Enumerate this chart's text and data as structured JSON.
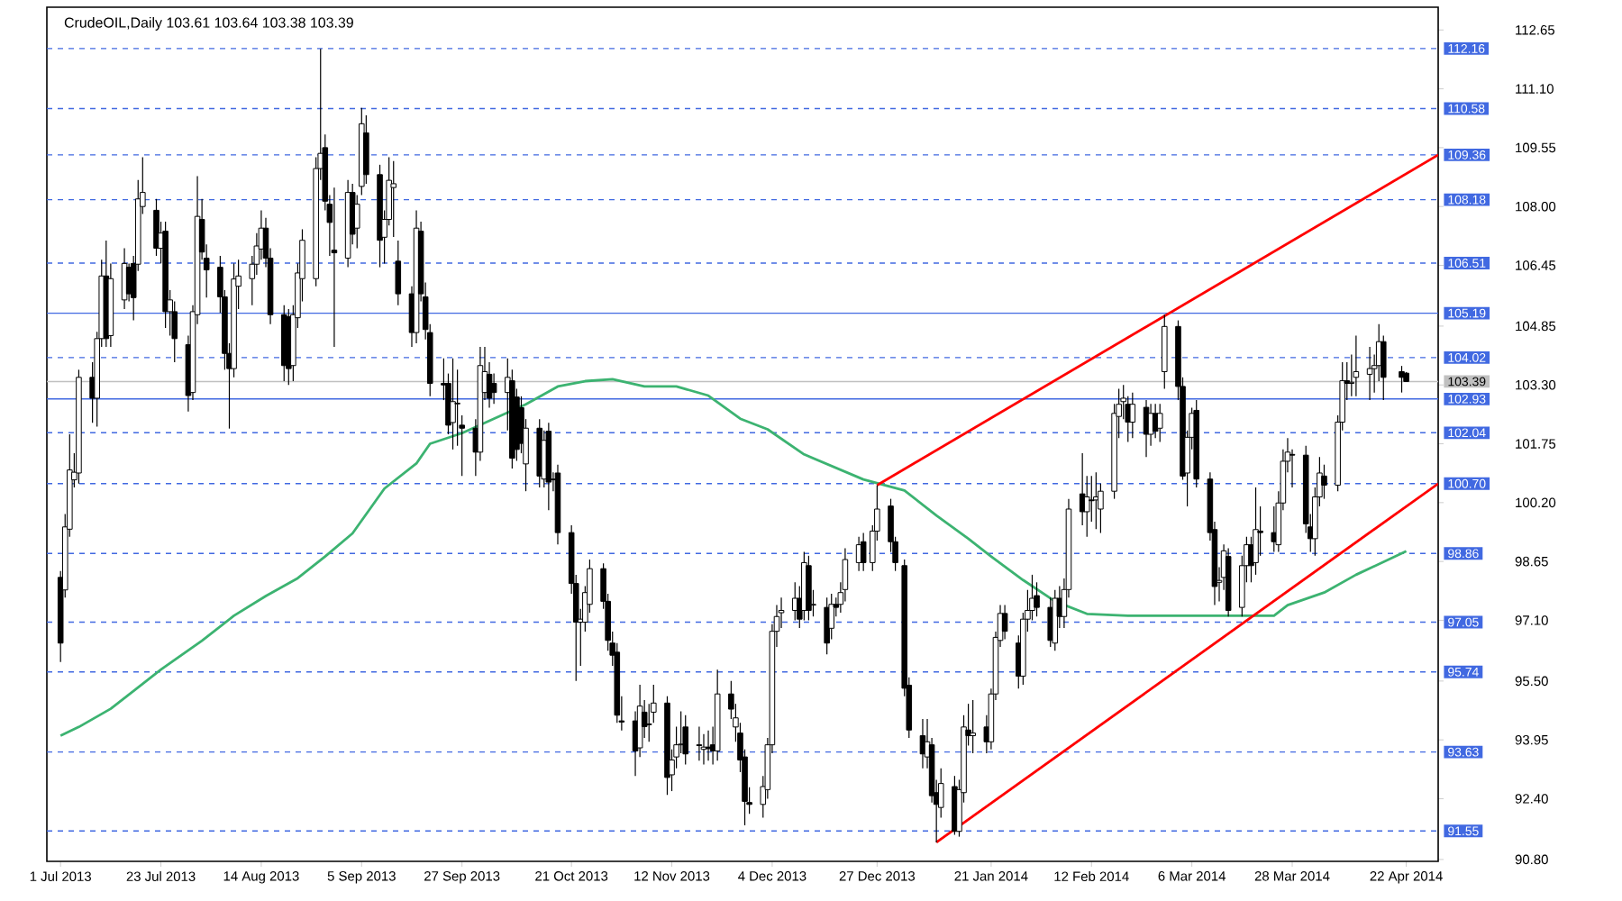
{
  "chart_data": {
    "type": "candlestick",
    "title": "CrudeOIL,Daily  103.61 103.64 103.38 103.39",
    "x": [
      "2013-07-01",
      "2013-07-02",
      "2013-07-03",
      "2013-07-04",
      "2013-07-05",
      "2013-07-08",
      "2013-07-09",
      "2013-07-10",
      "2013-07-11",
      "2013-07-12",
      "2013-07-15",
      "2013-07-16",
      "2013-07-17",
      "2013-07-18",
      "2013-07-19",
      "2013-07-22",
      "2013-07-23",
      "2013-07-24",
      "2013-07-25",
      "2013-07-26",
      "2013-07-29",
      "2013-07-30",
      "2013-07-31",
      "2013-08-01",
      "2013-08-02",
      "2013-08-05",
      "2013-08-06",
      "2013-08-07",
      "2013-08-08",
      "2013-08-09",
      "2013-08-12",
      "2013-08-13",
      "2013-08-14",
      "2013-08-15",
      "2013-08-16",
      "2013-08-19",
      "2013-08-20",
      "2013-08-21",
      "2013-08-22",
      "2013-08-23",
      "2013-08-26",
      "2013-08-27",
      "2013-08-28",
      "2013-08-29",
      "2013-08-30",
      "2013-09-02",
      "2013-09-03",
      "2013-09-04",
      "2013-09-05",
      "2013-09-06",
      "2013-09-09",
      "2013-09-10",
      "2013-09-11",
      "2013-09-12",
      "2013-09-13",
      "2013-09-16",
      "2013-09-17",
      "2013-09-18",
      "2013-09-19",
      "2013-09-20",
      "2013-09-23",
      "2013-09-24",
      "2013-09-25",
      "2013-09-26",
      "2013-09-27",
      "2013-09-30",
      "2013-10-01",
      "2013-10-02",
      "2013-10-03",
      "2013-10-04",
      "2013-10-07",
      "2013-10-08",
      "2013-10-09",
      "2013-10-10",
      "2013-10-11",
      "2013-10-14",
      "2013-10-15",
      "2013-10-16",
      "2013-10-17",
      "2013-10-18",
      "2013-10-21",
      "2013-10-22",
      "2013-10-23",
      "2013-10-24",
      "2013-10-25",
      "2013-10-28",
      "2013-10-29",
      "2013-10-30",
      "2013-10-31",
      "2013-11-01",
      "2013-11-04",
      "2013-11-05",
      "2013-11-06",
      "2013-11-07",
      "2013-11-08",
      "2013-11-11",
      "2013-11-12",
      "2013-11-13",
      "2013-11-14",
      "2013-11-15",
      "2013-11-18",
      "2013-11-19",
      "2013-11-20",
      "2013-11-21",
      "2013-11-22",
      "2013-11-25",
      "2013-11-26",
      "2013-11-27",
      "2013-11-28",
      "2013-11-29",
      "2013-12-02",
      "2013-12-03",
      "2013-12-04",
      "2013-12-05",
      "2013-12-06",
      "2013-12-09",
      "2013-12-10",
      "2013-12-11",
      "2013-12-12",
      "2013-12-13",
      "2013-12-16",
      "2013-12-17",
      "2013-12-18",
      "2013-12-19",
      "2013-12-20",
      "2013-12-23",
      "2013-12-24",
      "2013-12-26",
      "2013-12-27",
      "2013-12-30",
      "2013-12-31",
      "2014-01-02",
      "2014-01-03",
      "2014-01-06",
      "2014-01-07",
      "2014-01-08",
      "2014-01-09",
      "2014-01-10",
      "2014-01-13",
      "2014-01-14",
      "2014-01-15",
      "2014-01-16",
      "2014-01-17",
      "2014-01-20",
      "2014-01-21",
      "2014-01-22",
      "2014-01-23",
      "2014-01-24",
      "2014-01-27",
      "2014-01-28",
      "2014-01-29",
      "2014-01-30",
      "2014-01-31",
      "2014-02-03",
      "2014-02-04",
      "2014-02-05",
      "2014-02-06",
      "2014-02-07",
      "2014-02-10",
      "2014-02-11",
      "2014-02-12",
      "2014-02-13",
      "2014-02-14",
      "2014-02-17",
      "2014-02-18",
      "2014-02-19",
      "2014-02-20",
      "2014-02-21",
      "2014-02-24",
      "2014-02-25",
      "2014-02-26",
      "2014-02-27",
      "2014-02-28",
      "2014-03-03",
      "2014-03-04",
      "2014-03-05",
      "2014-03-06",
      "2014-03-07",
      "2014-03-10",
      "2014-03-11",
      "2014-03-12",
      "2014-03-13",
      "2014-03-14",
      "2014-03-17",
      "2014-03-18",
      "2014-03-19",
      "2014-03-20",
      "2014-03-21",
      "2014-03-24",
      "2014-03-25",
      "2014-03-26",
      "2014-03-27",
      "2014-03-28",
      "2014-03-31",
      "2014-04-01",
      "2014-04-02",
      "2014-04-03",
      "2014-04-04",
      "2014-04-07",
      "2014-04-08",
      "2014-04-09",
      "2014-04-10",
      "2014-04-11",
      "2014-04-14",
      "2014-04-15",
      "2014-04-16",
      "2014-04-17",
      "2014-04-21",
      "2014-04-22"
    ],
    "ohlc": [
      [
        98.23,
        98.4,
        96.0,
        96.5
      ],
      [
        97.9,
        99.9,
        97.7,
        99.56
      ],
      [
        99.5,
        102.0,
        99.3,
        101.06
      ],
      [
        100.8,
        101.5,
        100.6,
        101.0
      ],
      [
        100.98,
        103.7,
        100.7,
        103.5
      ],
      [
        103.5,
        103.9,
        102.3,
        102.95
      ],
      [
        102.95,
        104.7,
        102.2,
        104.52
      ],
      [
        104.52,
        106.6,
        104.3,
        106.17
      ],
      [
        106.17,
        107.1,
        104.3,
        104.52
      ],
      [
        104.6,
        106.5,
        104.3,
        106.1
      ],
      [
        105.54,
        106.9,
        105.3,
        106.5
      ],
      [
        106.4,
        106.5,
        105.5,
        105.7
      ],
      [
        106.5,
        106.7,
        105.0,
        105.6
      ],
      [
        106.48,
        108.7,
        106.3,
        108.2
      ],
      [
        108.0,
        109.3,
        107.8,
        108.37
      ],
      [
        107.9,
        108.2,
        106.7,
        106.9
      ],
      [
        106.9,
        107.6,
        106.5,
        107.3
      ],
      [
        107.35,
        107.6,
        104.8,
        105.23
      ],
      [
        105.23,
        105.8,
        104.6,
        105.54
      ],
      [
        105.23,
        105.5,
        103.9,
        104.52
      ],
      [
        104.36,
        104.6,
        102.6,
        103.02
      ],
      [
        103.1,
        105.4,
        102.9,
        105.23
      ],
      [
        105.15,
        108.8,
        104.9,
        107.74
      ],
      [
        107.66,
        108.2,
        106.6,
        106.8
      ],
      [
        106.64,
        107.0,
        105.6,
        106.33
      ],
      [
        106.4,
        106.7,
        105.2,
        105.62
      ],
      [
        105.62,
        105.8,
        103.7,
        104.13
      ],
      [
        104.13,
        104.4,
        102.15,
        103.73
      ],
      [
        103.73,
        106.5,
        103.5,
        106.09
      ],
      [
        105.9,
        106.6,
        105.3,
        106.17
      ],
      [
        106.1,
        106.7,
        105.4,
        106.48
      ],
      [
        106.48,
        107.3,
        106.2,
        106.96
      ],
      [
        106.88,
        107.9,
        106.6,
        107.43
      ],
      [
        107.43,
        107.7,
        106.4,
        106.64
      ],
      [
        106.64,
        106.9,
        104.9,
        105.15
      ],
      [
        105.15,
        105.4,
        103.4,
        103.81
      ],
      [
        105.1,
        105.3,
        103.3,
        103.73
      ],
      [
        103.81,
        105.4,
        103.4,
        105.15
      ],
      [
        105.07,
        106.5,
        104.8,
        106.25
      ],
      [
        106.1,
        107.4,
        105.5,
        107.11
      ],
      [
        106.1,
        109.3,
        105.9,
        109.0
      ],
      [
        109.0,
        112.15,
        108.7,
        109.4
      ],
      [
        109.55,
        109.9,
        107.9,
        108.14
      ],
      [
        108.06,
        108.3,
        106.7,
        107.58
      ],
      [
        106.85,
        108.5,
        104.3,
        106.78
      ],
      [
        106.64,
        108.7,
        106.4,
        108.37
      ],
      [
        108.37,
        108.6,
        107.0,
        107.27
      ],
      [
        107.43,
        108.3,
        106.9,
        108.06
      ],
      [
        108.53,
        110.6,
        108.3,
        110.18
      ],
      [
        109.94,
        110.4,
        108.6,
        108.84
      ],
      [
        108.84,
        109.1,
        106.4,
        107.11
      ],
      [
        107.19,
        107.9,
        106.5,
        107.66
      ],
      [
        107.66,
        109.3,
        107.5,
        108.69
      ],
      [
        108.5,
        109.2,
        107.2,
        108.6
      ],
      [
        106.56,
        107.1,
        105.4,
        105.7
      ],
      [
        105.7,
        105.9,
        104.3,
        104.68
      ],
      [
        104.68,
        107.9,
        104.4,
        107.43
      ],
      [
        107.35,
        107.6,
        105.5,
        105.7
      ],
      [
        105.62,
        106.0,
        104.5,
        104.76
      ],
      [
        104.68,
        104.9,
        103.0,
        103.34
      ],
      [
        103.34,
        104.0,
        102.9,
        103.3
      ],
      [
        103.34,
        103.6,
        102.0,
        102.24
      ],
      [
        102.31,
        104.0,
        101.6,
        102.86
      ],
      [
        102.8,
        103.7,
        101.7,
        102.82
      ],
      [
        102.24,
        102.5,
        100.9,
        102.16
      ],
      [
        102.16,
        102.4,
        100.9,
        101.53
      ],
      [
        101.53,
        104.3,
        101.3,
        103.81
      ],
      [
        103.1,
        104.3,
        102.9,
        103.65
      ],
      [
        103.58,
        103.9,
        102.7,
        102.95
      ],
      [
        103.34,
        103.6,
        102.8,
        103.1
      ],
      [
        103.1,
        104.0,
        102.1,
        103.5
      ],
      [
        103.41,
        103.7,
        101.1,
        101.37
      ],
      [
        102.98,
        103.2,
        101.3,
        101.6
      ],
      [
        102.7,
        103.0,
        101.5,
        101.76
      ],
      [
        101.22,
        102.4,
        100.5,
        102.16
      ],
      [
        102.16,
        102.4,
        100.6,
        100.9
      ],
      [
        100.82,
        102.1,
        100.6,
        101.84
      ],
      [
        102.08,
        102.3,
        100.0,
        100.74
      ],
      [
        100.82,
        101.0,
        100.5,
        100.8
      ],
      [
        100.98,
        101.2,
        99.1,
        99.41
      ],
      [
        99.41,
        99.6,
        97.8,
        98.07
      ],
      [
        98.07,
        98.3,
        95.5,
        97.05
      ],
      [
        97.05,
        97.4,
        95.9,
        97.13
      ],
      [
        97.05,
        98.0,
        96.8,
        97.83
      ],
      [
        97.52,
        98.7,
        97.3,
        98.46
      ],
      [
        98.46,
        98.6,
        97.4,
        97.6
      ],
      [
        97.6,
        97.8,
        96.3,
        96.57
      ],
      [
        96.5,
        96.8,
        95.9,
        96.18
      ],
      [
        96.26,
        96.5,
        94.4,
        94.6
      ],
      [
        94.45,
        95.1,
        94.2,
        94.42
      ],
      [
        94.45,
        94.7,
        93.0,
        93.66
      ],
      [
        93.74,
        95.4,
        93.5,
        94.84
      ],
      [
        94.68,
        95.0,
        94.0,
        94.3
      ],
      [
        94.37,
        94.9,
        93.9,
        94.35
      ],
      [
        94.68,
        95.4,
        94.4,
        94.92
      ],
      [
        94.92,
        95.1,
        92.5,
        92.96
      ],
      [
        93.03,
        93.7,
        92.6,
        93.42
      ],
      [
        93.5,
        94.3,
        93.2,
        93.82
      ],
      [
        93.82,
        94.7,
        93.6,
        93.84
      ],
      [
        94.29,
        94.6,
        93.3,
        93.58
      ],
      [
        93.82,
        94.3,
        93.4,
        93.8
      ],
      [
        93.7,
        94.1,
        93.3,
        93.76
      ],
      [
        93.76,
        94.2,
        93.4,
        93.72
      ],
      [
        93.82,
        94.3,
        93.3,
        93.66
      ],
      [
        93.66,
        95.8,
        93.4,
        95.16
      ],
      [
        95.16,
        95.5,
        94.5,
        94.76
      ],
      [
        94.29,
        94.9,
        93.9,
        94.53
      ],
      [
        94.13,
        94.4,
        93.1,
        93.42
      ],
      [
        93.5,
        93.7,
        91.7,
        92.33
      ],
      [
        92.3,
        92.7,
        92.0,
        92.25
      ],
      [
        92.25,
        93.0,
        91.9,
        92.72
      ],
      [
        92.64,
        94.0,
        92.4,
        93.82
      ],
      [
        93.82,
        97.0,
        93.6,
        96.81
      ],
      [
        96.81,
        97.5,
        96.4,
        97.2
      ],
      [
        97.3,
        97.7,
        96.9,
        97.36
      ],
      [
        97.36,
        98.1,
        97.1,
        97.68
      ],
      [
        97.68,
        98.0,
        96.9,
        97.13
      ],
      [
        97.36,
        98.9,
        97.1,
        98.62
      ],
      [
        98.54,
        98.8,
        97.1,
        97.36
      ],
      [
        97.5,
        97.9,
        97.2,
        97.52
      ],
      [
        97.44,
        97.7,
        96.2,
        96.5
      ],
      [
        96.89,
        97.8,
        96.6,
        97.52
      ],
      [
        97.52,
        97.7,
        97.2,
        97.44
      ],
      [
        97.52,
        98.1,
        97.3,
        97.83
      ],
      [
        97.91,
        99.0,
        97.6,
        98.7
      ],
      [
        98.62,
        99.3,
        98.4,
        99.09
      ],
      [
        99.17,
        99.4,
        98.4,
        98.62
      ],
      [
        98.62,
        99.6,
        98.4,
        99.45
      ],
      [
        99.45,
        100.66,
        99.2,
        100.03
      ],
      [
        100.11,
        100.3,
        98.9,
        99.17
      ],
      [
        99.17,
        99.3,
        98.4,
        98.62
      ],
      [
        98.54,
        98.7,
        95.1,
        95.31
      ],
      [
        95.39,
        95.6,
        94.0,
        94.21
      ],
      [
        94.06,
        94.5,
        93.2,
        93.58
      ],
      [
        93.5,
        94.5,
        93.2,
        93.9
      ],
      [
        93.82,
        94.0,
        92.3,
        92.48
      ],
      [
        92.56,
        92.9,
        91.25,
        92.25
      ],
      [
        92.17,
        93.2,
        91.9,
        92.8
      ],
      [
        92.72,
        93.0,
        91.45,
        91.54
      ],
      [
        91.54,
        92.9,
        91.4,
        92.64
      ],
      [
        92.56,
        94.6,
        92.3,
        94.29
      ],
      [
        94.21,
        94.9,
        93.8,
        94.06
      ],
      [
        94.06,
        95.0,
        93.6,
        94.13
      ],
      [
        94.29,
        94.6,
        93.6,
        93.9
      ],
      [
        93.9,
        95.3,
        93.7,
        95.16
      ],
      [
        95.16,
        96.8,
        95.0,
        96.65
      ],
      [
        96.57,
        97.5,
        96.4,
        97.28
      ],
      [
        97.28,
        97.5,
        96.6,
        96.81
      ],
      [
        96.5,
        96.7,
        95.3,
        95.63
      ],
      [
        95.63,
        97.3,
        95.4,
        97.13
      ],
      [
        97.13,
        97.9,
        96.8,
        97.36
      ],
      [
        97.36,
        98.3,
        97.1,
        97.68
      ],
      [
        97.75,
        98.1,
        97.2,
        97.44
      ],
      [
        97.44,
        97.7,
        96.4,
        96.57
      ],
      [
        96.5,
        97.9,
        96.3,
        97.68
      ],
      [
        97.68,
        98.0,
        96.9,
        97.2
      ],
      [
        97.2,
        98.2,
        96.9,
        97.91
      ],
      [
        97.91,
        100.3,
        97.7,
        100.03
      ],
      [
        100.43,
        101.5,
        99.6,
        99.96
      ],
      [
        99.96,
        100.9,
        99.3,
        100.35
      ],
      [
        100.27,
        100.9,
        99.7,
        100.25
      ],
      [
        100.27,
        101.0,
        99.5,
        100.35
      ],
      [
        100.03,
        100.7,
        99.4,
        100.5
      ],
      [
        100.5,
        102.8,
        100.3,
        102.55
      ],
      [
        102.47,
        103.2,
        101.9,
        102.79
      ],
      [
        102.86,
        103.3,
        102.4,
        102.95
      ],
      [
        102.79,
        103.0,
        101.8,
        102.32
      ],
      [
        102.32,
        103.1,
        101.9,
        102.79
      ],
      [
        102.71,
        102.9,
        101.4,
        102.0
      ],
      [
        102.0,
        102.8,
        101.7,
        102.55
      ],
      [
        102.55,
        102.8,
        101.9,
        102.08
      ],
      [
        102.16,
        102.8,
        101.8,
        102.55
      ],
      [
        103.65,
        105.15,
        103.2,
        104.84
      ],
      [
        104.84,
        105.0,
        102.9,
        103.26
      ],
      [
        103.26,
        103.5,
        100.8,
        100.9
      ],
      [
        100.98,
        102.1,
        100.1,
        101.92
      ],
      [
        101.92,
        102.7,
        101.6,
        102.55
      ],
      [
        102.63,
        102.9,
        100.6,
        100.82
      ],
      [
        100.82,
        101.0,
        99.2,
        99.41
      ],
      [
        99.49,
        99.7,
        97.5,
        97.99
      ],
      [
        98.1,
        98.5,
        97.6,
        98.15
      ],
      [
        98.23,
        99.1,
        97.9,
        98.93
      ],
      [
        98.78,
        99.0,
        97.2,
        97.36
      ],
      [
        97.44,
        98.8,
        97.2,
        98.54
      ],
      [
        98.54,
        99.3,
        98.1,
        99.09
      ],
      [
        99.09,
        99.3,
        98.1,
        98.54
      ],
      [
        98.62,
        100.6,
        98.3,
        99.49
      ],
      [
        99.45,
        100.1,
        98.8,
        99.41
      ],
      [
        99.41,
        100.1,
        98.9,
        99.17
      ],
      [
        99.09,
        100.5,
        98.9,
        100.19
      ],
      [
        100.19,
        101.6,
        100.0,
        101.29
      ],
      [
        101.29,
        101.9,
        101.0,
        101.53
      ],
      [
        101.47,
        101.6,
        100.6,
        101.45
      ],
      [
        101.45,
        101.7,
        99.4,
        99.64
      ],
      [
        99.56,
        99.9,
        98.9,
        99.25
      ],
      [
        99.25,
        100.6,
        98.8,
        100.35
      ],
      [
        100.35,
        101.4,
        100.1,
        100.98
      ],
      [
        100.9,
        101.2,
        100.3,
        100.66
      ],
      [
        100.66,
        102.5,
        100.5,
        102.32
      ],
      [
        102.32,
        103.9,
        102.1,
        103.41
      ],
      [
        103.41,
        103.9,
        102.9,
        103.34
      ],
      [
        103.34,
        104.1,
        103.0,
        103.37
      ],
      [
        103.5,
        104.6,
        103.0,
        103.65
      ],
      [
        103.58,
        104.3,
        102.9,
        103.73
      ],
      [
        103.73,
        104.1,
        103.1,
        103.81
      ],
      [
        103.81,
        104.9,
        103.4,
        104.44
      ],
      [
        104.44,
        104.6,
        102.9,
        103.5
      ],
      [
        103.65,
        103.8,
        103.1,
        103.5
      ],
      [
        103.61,
        103.64,
        103.38,
        103.39
      ]
    ],
    "series": [
      {
        "type": "line",
        "color": "#3cb371",
        "x": [
          "2013-07-01",
          "2013-07-05",
          "2013-07-12",
          "2013-07-23",
          "2013-08-01",
          "2013-08-08",
          "2013-08-15",
          "2013-08-22",
          "2013-08-28",
          "2013-09-03",
          "2013-09-10",
          "2013-09-17",
          "2013-09-20",
          "2013-09-27",
          "2013-10-04",
          "2013-10-11",
          "2013-10-18",
          "2013-10-24",
          "2013-10-30",
          "2013-11-06",
          "2013-11-13",
          "2013-11-20",
          "2013-11-27",
          "2013-12-03",
          "2013-12-11",
          "2013-12-24",
          "2014-01-02",
          "2014-01-09",
          "2014-01-16",
          "2014-01-21",
          "2014-01-28",
          "2014-02-04",
          "2014-02-11",
          "2014-02-20",
          "2014-03-07",
          "2014-03-24",
          "2014-03-27",
          "2014-04-04",
          "2014-04-11",
          "2014-04-22"
        ],
        "values": [
          94.06,
          94.29,
          94.77,
          95.8,
          96.56,
          97.22,
          97.74,
          98.21,
          98.78,
          99.39,
          100.57,
          101.23,
          101.75,
          102.03,
          102.41,
          102.79,
          103.26,
          103.4,
          103.45,
          103.26,
          103.26,
          103.02,
          102.41,
          102.13,
          101.47,
          100.81,
          100.52,
          99.86,
          99.25,
          98.78,
          98.16,
          97.6,
          97.27,
          97.22,
          97.22,
          97.22,
          97.5,
          97.83,
          98.3,
          98.92
        ]
      },
      {
        "type": "line",
        "color": "#ff0000",
        "x": [
          "2013-12-27",
          "2014-04-29"
        ],
        "values": [
          100.66,
          109.36
        ]
      },
      {
        "type": "line",
        "color": "#ff0000",
        "x": [
          "2014-01-09",
          "2014-04-29"
        ],
        "values": [
          91.25,
          100.7
        ]
      }
    ],
    "xlim": [
      "2013-06-28",
      "2014-04-29"
    ],
    "xticks": [
      {
        "value": "2013-07-01",
        "label": "1 Jul 2013"
      },
      {
        "value": "2013-07-23",
        "label": "23 Jul 2013"
      },
      {
        "value": "2013-08-14",
        "label": "14 Aug 2013"
      },
      {
        "value": "2013-09-05",
        "label": "5 Sep 2013"
      },
      {
        "value": "2013-09-27",
        "label": "27 Sep 2013"
      },
      {
        "value": "2013-10-21",
        "label": "21 Oct 2013"
      },
      {
        "value": "2013-11-12",
        "label": "12 Nov 2013"
      },
      {
        "value": "2013-12-04",
        "label": "4 Dec 2013"
      },
      {
        "value": "2013-12-27",
        "label": "27 Dec 2013"
      },
      {
        "value": "2014-01-21",
        "label": "21 Jan 2014"
      },
      {
        "value": "2014-02-12",
        "label": "12 Feb 2014"
      },
      {
        "value": "2014-03-06",
        "label": "6 Mar 2014"
      },
      {
        "value": "2014-03-28",
        "label": "28 Mar 2014"
      },
      {
        "value": "2014-04-22",
        "label": "22 Apr 2014"
      }
    ],
    "ylim": [
      90.75,
      113.25
    ],
    "yticks": [
      {
        "value": 112.65,
        "label": "112.65"
      },
      {
        "value": 111.1,
        "label": "111.10"
      },
      {
        "value": 109.55,
        "label": "109.55"
      },
      {
        "value": 108.0,
        "label": "108.00"
      },
      {
        "value": 106.45,
        "label": "106.45"
      },
      {
        "value": 104.85,
        "label": "104.85"
      },
      {
        "value": 103.3,
        "label": "103.30"
      },
      {
        "value": 101.75,
        "label": "101.75"
      },
      {
        "value": 100.2,
        "label": "100.20"
      },
      {
        "value": 98.65,
        "label": "98.65"
      },
      {
        "value": 97.1,
        "label": "97.10"
      },
      {
        "value": 95.5,
        "label": "95.50"
      },
      {
        "value": 93.95,
        "label": "93.95"
      },
      {
        "value": 92.4,
        "label": "92.40"
      },
      {
        "value": 90.8,
        "label": "90.80"
      }
    ],
    "ref_lines": [
      {
        "axis": "y",
        "value": 112.16,
        "label": "112.16",
        "color": "#4169e1",
        "line_style": "dashed"
      },
      {
        "axis": "y",
        "value": 110.58,
        "label": "110.58",
        "color": "#4169e1",
        "line_style": "dashed"
      },
      {
        "axis": "y",
        "value": 109.36,
        "label": "109.36",
        "color": "#4169e1",
        "line_style": "dashed"
      },
      {
        "axis": "y",
        "value": 108.18,
        "label": "108.18",
        "color": "#4169e1",
        "line_style": "dashed"
      },
      {
        "axis": "y",
        "value": 106.51,
        "label": "106.51",
        "color": "#4169e1",
        "line_style": "dashed"
      },
      {
        "axis": "y",
        "value": 105.19,
        "label": "105.19",
        "color": "#4169e1",
        "line_style": "solid"
      },
      {
        "axis": "y",
        "value": 104.02,
        "label": "104.02",
        "color": "#4169e1",
        "line_style": "dashed"
      },
      {
        "axis": "y",
        "value": 103.39,
        "label": "103.39",
        "color": "#c0c0c0",
        "line_style": "solid"
      },
      {
        "axis": "y",
        "value": 102.93,
        "label": "102.93",
        "color": "#4169e1",
        "line_style": "solid"
      },
      {
        "axis": "y",
        "value": 102.04,
        "label": "102.04",
        "color": "#4169e1",
        "line_style": "dashed"
      },
      {
        "axis": "y",
        "value": 100.7,
        "label": "100.70",
        "color": "#4169e1",
        "line_style": "dashed"
      },
      {
        "axis": "y",
        "value": 98.86,
        "label": "98.86",
        "color": "#4169e1",
        "line_style": "dashed"
      },
      {
        "axis": "y",
        "value": 97.05,
        "label": "97.05",
        "color": "#4169e1",
        "line_style": "dashed"
      },
      {
        "axis": "y",
        "value": 95.74,
        "label": "95.74",
        "color": "#4169e1",
        "line_style": "dashed"
      },
      {
        "axis": "y",
        "value": 93.63,
        "label": "93.63",
        "color": "#4169e1",
        "line_style": "dashed"
      },
      {
        "axis": "y",
        "value": 91.55,
        "label": "91.55",
        "color": "#4169e1",
        "line_style": "dashed"
      }
    ]
  }
}
